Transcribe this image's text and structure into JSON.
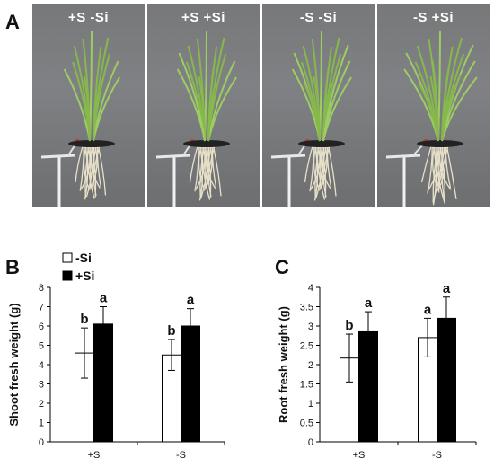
{
  "panel_letters": {
    "a": "A",
    "b": "B",
    "c": "C"
  },
  "photos": [
    {
      "label": "+S  -Si"
    },
    {
      "label": "+S  +Si"
    },
    {
      "label": "-S  -Si"
    },
    {
      "label": "-S  +Si"
    }
  ],
  "legend": {
    "open_label": "-Si",
    "filled_label": "+Si"
  },
  "colors": {
    "si_minus": "#ffffff",
    "si_plus": "#000000",
    "photo_bg": "#7a7b7d",
    "plant": "#8fbf55",
    "root": "#e6dfc8"
  },
  "chart_data": [
    {
      "type": "bar",
      "ylabel": "Shoot fresh weight (g)",
      "xlabel": "",
      "categories": [
        "+S",
        "-S"
      ],
      "ylim": [
        0,
        8
      ],
      "yticks": [
        "0",
        "1",
        "2",
        "3",
        "4",
        "5",
        "6",
        "7",
        "8"
      ],
      "series": [
        {
          "name": "-Si",
          "values": [
            4.6,
            4.5
          ],
          "errors": [
            1.3,
            0.8
          ],
          "letters": [
            "b",
            "b"
          ]
        },
        {
          "name": "+Si",
          "values": [
            6.1,
            6.0
          ],
          "errors": [
            0.9,
            0.9
          ],
          "letters": [
            "a",
            "a"
          ]
        }
      ]
    },
    {
      "type": "bar",
      "ylabel": "Root fresh weight (g)",
      "xlabel": "",
      "categories": [
        "+S",
        "-S"
      ],
      "ylim": [
        0,
        4
      ],
      "yticks": [
        "0",
        "0.5",
        "1",
        "1.5",
        "2",
        "2.5",
        "3",
        "3.5",
        "4"
      ],
      "series": [
        {
          "name": "-Si",
          "values": [
            2.17,
            2.7
          ],
          "errors": [
            0.62,
            0.5
          ],
          "letters": [
            "b",
            "a"
          ]
        },
        {
          "name": "+Si",
          "values": [
            2.85,
            3.2
          ],
          "errors": [
            0.52,
            0.55
          ],
          "letters": [
            "a",
            "a"
          ]
        }
      ]
    }
  ]
}
